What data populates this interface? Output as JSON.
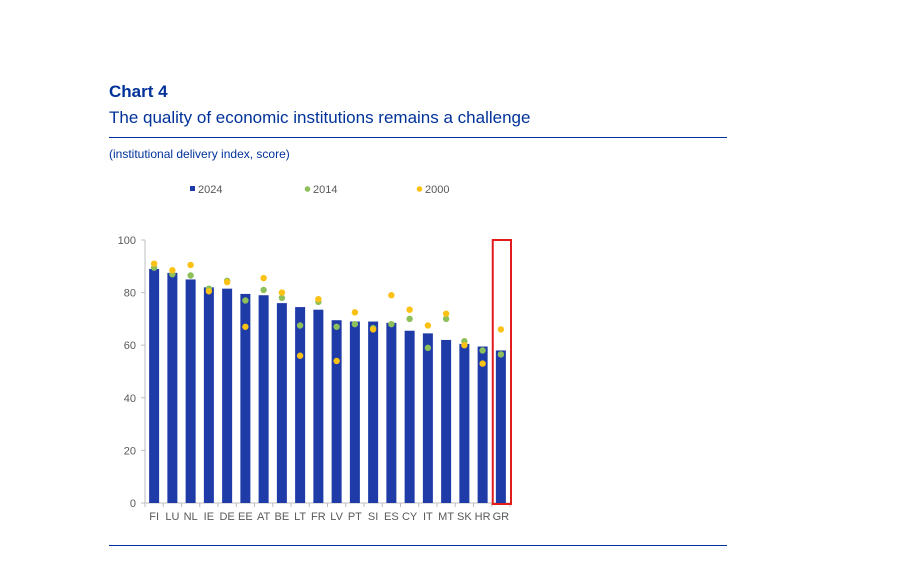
{
  "header": {
    "chart_label": "Chart 4",
    "title": "The quality of economic institutions remains a challenge",
    "subtitle": "(institutional delivery index, score)"
  },
  "colors": {
    "bar": "#1f3ba8",
    "dot2014": "#8dbf5b",
    "dot2000": "#fbc114",
    "highlight": "#e21c1c",
    "axis": "#bfbfbf",
    "text": "#595959",
    "brand": "#003299"
  },
  "chart_data": {
    "type": "bar",
    "title": "The quality of economic institutions remains a challenge",
    "ylabel": "institutional delivery index, score",
    "xlabel": "",
    "ylim": [
      0,
      100
    ],
    "yticks": [
      0,
      20,
      40,
      60,
      80,
      100
    ],
    "grid": false,
    "legend_position": "top",
    "categories": [
      "FI",
      "LU",
      "NL",
      "IE",
      "DE",
      "EE",
      "AT",
      "BE",
      "LT",
      "FR",
      "LV",
      "PT",
      "SI",
      "ES",
      "CY",
      "IT",
      "MT",
      "SK",
      "HR",
      "GR"
    ],
    "highlighted_category": "GR",
    "series": [
      {
        "name": "2024",
        "kind": "bar",
        "values": [
          89,
          87.5,
          85,
          82,
          81.5,
          79.5,
          79,
          76,
          74.5,
          73.5,
          69.5,
          69,
          69,
          68.5,
          65.5,
          64.5,
          62,
          60.5,
          59.5,
          58
        ]
      },
      {
        "name": "2014",
        "kind": "dot",
        "values": [
          89.5,
          87,
          86.5,
          81.5,
          84.5,
          77,
          81,
          78,
          67.5,
          76.5,
          67,
          68,
          66.5,
          68,
          70,
          59,
          70,
          61.5,
          58,
          56.5
        ]
      },
      {
        "name": "2000",
        "kind": "dot",
        "values": [
          91,
          88.5,
          90.5,
          80.5,
          84,
          67,
          85.5,
          80,
          56,
          77.5,
          54,
          72.5,
          66,
          79,
          73.5,
          67.5,
          72,
          60,
          53,
          66
        ]
      }
    ]
  }
}
